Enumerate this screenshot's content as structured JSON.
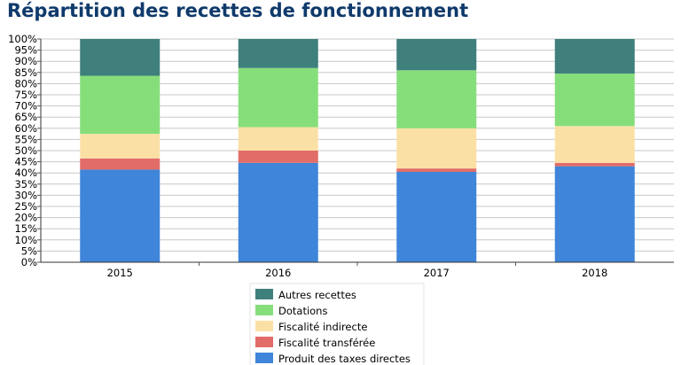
{
  "chart_data": {
    "type": "bar",
    "stacked": true,
    "percent": true,
    "title": "Répartition des recettes de fonctionnement",
    "categories": [
      "2015",
      "2016",
      "2017",
      "2018"
    ],
    "y_ticks": [
      "0%",
      "5%",
      "10%",
      "15%",
      "20%",
      "25%",
      "30%",
      "35%",
      "40%",
      "45%",
      "50%",
      "55%",
      "60%",
      "65%",
      "70%",
      "75%",
      "80%",
      "85%",
      "90%",
      "95%",
      "100%"
    ],
    "ylim": [
      0,
      100
    ],
    "grid": true,
    "legend_position": "bottom-center",
    "series": [
      {
        "name": "Produit des taxes directes",
        "color": "#3f85d9",
        "values": [
          41.5,
          44.5,
          40.5,
          43.0
        ]
      },
      {
        "name": "Fiscalité transférée",
        "color": "#e26c68",
        "values": [
          5.0,
          5.5,
          1.5,
          1.5
        ]
      },
      {
        "name": "Fiscalité indirecte",
        "color": "#fbe0a6",
        "values": [
          11.0,
          10.5,
          18.0,
          16.5
        ]
      },
      {
        "name": "Dotations",
        "color": "#86de7b",
        "values": [
          26.0,
          26.5,
          26.0,
          23.5
        ]
      },
      {
        "name": "Autres recettes",
        "color": "#3f7f7c",
        "values": [
          16.5,
          13.0,
          14.0,
          15.5
        ]
      }
    ],
    "legend_order": [
      4,
      3,
      2,
      1,
      0
    ]
  }
}
